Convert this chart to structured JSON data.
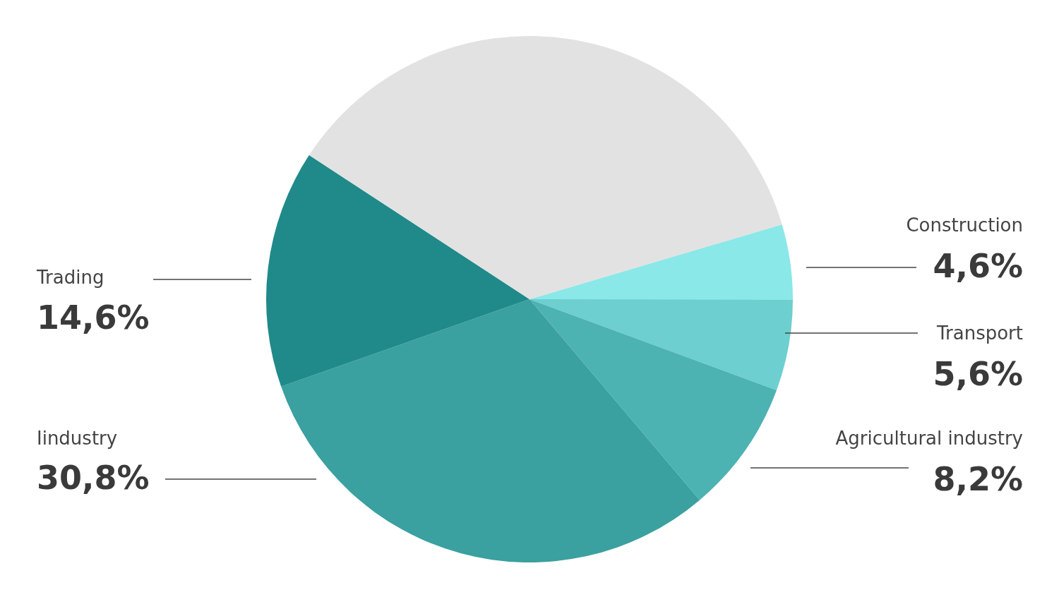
{
  "chart_data": {
    "type": "pie",
    "categories": [
      "Construction",
      "Transport",
      "Agricultural industry",
      "Iindustry",
      "Trading",
      null
    ],
    "values": [
      4.6,
      5.6,
      8.2,
      30.8,
      14.6,
      36.2
    ],
    "value_labels": [
      "4,6%",
      "5,6%",
      "8,2%",
      "30,8%",
      "14,6%",
      null
    ],
    "colors": [
      "#8ae8e8",
      "#6dcfcf",
      "#4db2b2",
      "#3aa0a0",
      "#1f8a89",
      "#e2e2e2"
    ]
  }
}
